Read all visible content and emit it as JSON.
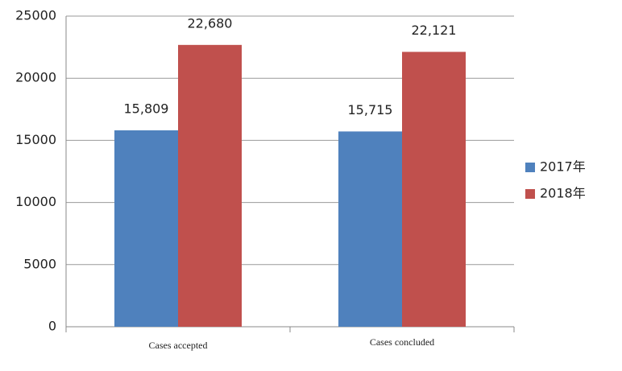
{
  "chart_data": {
    "type": "bar",
    "categories": [
      "Cases accepted",
      "Cases concluded"
    ],
    "series": [
      {
        "name": "2017年",
        "color": "#4f81bd",
        "values": [
          15809,
          15715
        ],
        "value_labels": [
          "15,809",
          "15,715"
        ]
      },
      {
        "name": "2018年",
        "color": "#c0504d",
        "values": [
          22680,
          22121
        ],
        "value_labels": [
          "22,680",
          "22,121"
        ]
      }
    ],
    "ylim": [
      0,
      25000
    ],
    "yticks": [
      0,
      5000,
      10000,
      15000,
      20000,
      25000
    ],
    "grid": true,
    "legend": "right"
  }
}
